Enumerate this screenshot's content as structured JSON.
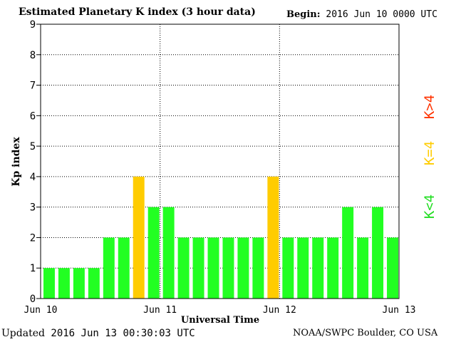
{
  "header": {
    "title": "Estimated Planetary K index (3 hour data)",
    "begin_label": "Begin:",
    "begin_value": "2016 Jun 10 0000 UTC"
  },
  "footer": {
    "updated_label": "Updated",
    "updated_value": "2016 Jun 13 00:30:03 UTC",
    "credit": "NOAA/SWPC Boulder, CO USA"
  },
  "legend": {
    "items": [
      {
        "label": "K>4",
        "color": "#ff3300"
      },
      {
        "label": "K=4",
        "color": "#ffcc00"
      },
      {
        "label": "K<4",
        "color": "#22dd22"
      }
    ]
  },
  "chart_data": {
    "type": "bar",
    "title": "Estimated Planetary K index (3 hour data)",
    "xlabel": "Universal Time",
    "ylabel": "Kp index",
    "ylim": [
      0,
      9
    ],
    "yticks": [
      "0",
      "1",
      "2",
      "3",
      "4",
      "5",
      "6",
      "7",
      "8",
      "9"
    ],
    "xticks": [
      "Jun 10",
      "Jun 11",
      "Jun 12",
      "Jun 13"
    ],
    "values": [
      1,
      1,
      1,
      1,
      2,
      2,
      4,
      3,
      3,
      2,
      2,
      2,
      2,
      2,
      2,
      4,
      2,
      2,
      2,
      2,
      3,
      2,
      3,
      2
    ],
    "colors": {
      "below": "#22ff22",
      "equal": "#ffcc00",
      "above": "#ff0000"
    },
    "grid": true
  }
}
